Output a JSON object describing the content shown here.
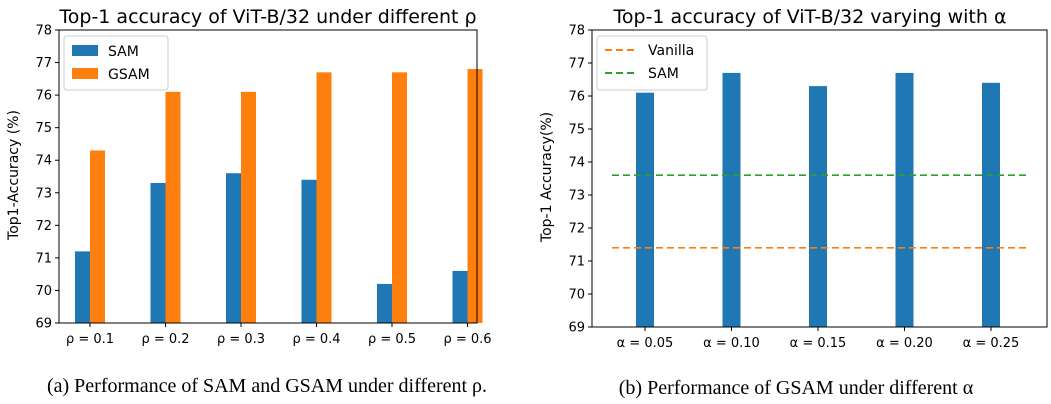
{
  "chart_data": [
    {
      "type": "bar",
      "title": "Top-1 accuracy of ViT-B/32 under different ρ",
      "xlabel": "",
      "ylabel": "Top1-Accuracy (%)",
      "categories": [
        "ρ = 0.1",
        "ρ = 0.2",
        "ρ = 0.3",
        "ρ = 0.4",
        "ρ = 0.5",
        "ρ = 0.6"
      ],
      "series": [
        {
          "name": "SAM",
          "color": "#1f77b4",
          "values": [
            71.2,
            73.3,
            73.6,
            73.4,
            70.2,
            70.6
          ]
        },
        {
          "name": "GSAM",
          "color": "#ff7f0e",
          "values": [
            74.3,
            76.1,
            76.1,
            76.7,
            76.7,
            76.8
          ]
        }
      ],
      "ylim": [
        69,
        78
      ],
      "yticks": [
        "69",
        "70",
        "71",
        "72",
        "73",
        "74",
        "75",
        "76",
        "77",
        "78"
      ],
      "legend": "top-left",
      "grid": false,
      "caption": "(a) Performance of SAM and GSAM under different ρ."
    },
    {
      "type": "bar",
      "title": "Top-1 accuracy of ViT-B/32 varying with α",
      "xlabel": "",
      "ylabel": "Top-1 Accuracy(%)",
      "categories": [
        "α = 0.05",
        "α = 0.10",
        "α = 0.15",
        "α = 0.20",
        "α = 0.25"
      ],
      "series": [
        {
          "name": "",
          "color": "#1f77b4",
          "values": [
            76.1,
            76.7,
            76.3,
            76.7,
            76.4
          ]
        }
      ],
      "reference_lines": [
        {
          "name": "Vanilla",
          "color": "#ff7f0e",
          "value": 71.4,
          "style": "dashed"
        },
        {
          "name": "SAM",
          "color": "#2ca02c",
          "value": 73.6,
          "style": "dashed"
        }
      ],
      "ylim": [
        69,
        78
      ],
      "yticks": [
        "69",
        "70",
        "71",
        "72",
        "73",
        "74",
        "75",
        "76",
        "77",
        "78"
      ],
      "legend": "top-left",
      "grid": false,
      "caption": "(b) Performance of GSAM under different α"
    }
  ]
}
